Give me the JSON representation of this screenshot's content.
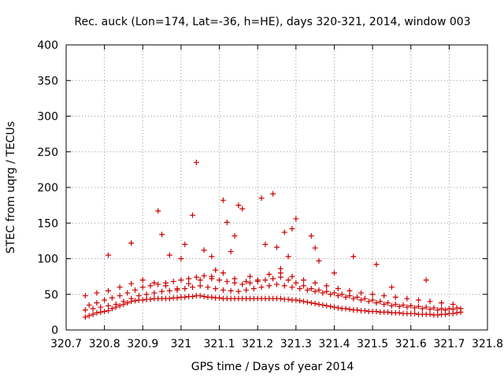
{
  "chart_data": {
    "type": "scatter",
    "title": "Rec. auck (Lon=174, Lat=-36, h=HE), days 320-321, 2014, window 003",
    "xlabel": "GPS time / Days of year 2014",
    "ylabel": "STEC from uqrg / TECUs",
    "xlim": [
      320.7,
      321.8
    ],
    "ylim": [
      0,
      400
    ],
    "xticks": [
      320.7,
      320.8,
      320.9,
      321.0,
      321.1,
      321.2,
      321.3,
      321.4,
      321.5,
      321.6,
      321.7,
      321.8
    ],
    "xtick_labels": [
      "320.7",
      "320.8",
      "320.9",
      "321",
      "321.1",
      "321.2",
      "321.3",
      "321.4",
      "321.5",
      "321.6",
      "321.7",
      "321.8"
    ],
    "yticks": [
      0,
      50,
      100,
      150,
      200,
      250,
      300,
      350,
      400
    ],
    "ytick_labels": [
      "0",
      "50",
      "100",
      "150",
      "200",
      "250",
      "300",
      "350",
      "400"
    ],
    "grid": true,
    "marker": "+",
    "color": "#cc0000",
    "series": [
      {
        "name": "STEC",
        "x": [
          320.75,
          320.76,
          320.77,
          320.78,
          320.79,
          320.8,
          320.81,
          320.82,
          320.83,
          320.84,
          320.85,
          320.86,
          320.87,
          320.88,
          320.89,
          320.9,
          320.91,
          320.92,
          320.93,
          320.94,
          320.95,
          320.96,
          320.97,
          320.98,
          320.99,
          321.0,
          321.01,
          321.02,
          321.03,
          321.04,
          321.05,
          321.06,
          321.07,
          321.08,
          321.09,
          321.1,
          321.11,
          321.12,
          321.13,
          321.14,
          321.15,
          321.16,
          321.17,
          321.18,
          321.19,
          321.2,
          321.21,
          321.22,
          321.23,
          321.24,
          321.25,
          321.26,
          321.27,
          321.28,
          321.29,
          321.3,
          321.31,
          321.32,
          321.33,
          321.34,
          321.35,
          321.36,
          321.37,
          321.38,
          321.39,
          321.4,
          321.41,
          321.42,
          321.43,
          321.44,
          321.45,
          321.46,
          321.47,
          321.48,
          321.49,
          321.5,
          321.51,
          321.52,
          321.53,
          321.54,
          321.55,
          321.56,
          321.57,
          321.58,
          321.59,
          321.6,
          321.61,
          321.62,
          321.63,
          321.64,
          321.65,
          321.66,
          321.67,
          321.68,
          321.69,
          321.7,
          321.71,
          321.72,
          321.73,
          320.75,
          320.77,
          320.79,
          320.81,
          320.83,
          320.85,
          320.87,
          320.89,
          320.91,
          320.93,
          320.95,
          320.97,
          320.99,
          321.01,
          321.03,
          321.05,
          321.07,
          321.09,
          321.11,
          321.13,
          321.15,
          321.17,
          321.19,
          321.21,
          321.23,
          321.25,
          321.27,
          321.29,
          321.31,
          321.33,
          321.35,
          321.37,
          321.39,
          321.41,
          321.43,
          321.45,
          321.47,
          321.49,
          321.51,
          321.53,
          321.55,
          321.57,
          321.59,
          321.61,
          321.63,
          321.65,
          321.67,
          321.69,
          321.71,
          321.73,
          320.76,
          320.78,
          320.8,
          320.82,
          320.84,
          320.86,
          320.88,
          320.9,
          320.92,
          320.94,
          320.96,
          320.98,
          321.0,
          321.02,
          321.04,
          321.06,
          321.08,
          321.1,
          321.12,
          321.14,
          321.16,
          321.18,
          321.2,
          321.22,
          321.24,
          321.26,
          321.28,
          321.3,
          321.32,
          321.34,
          321.36,
          321.38,
          321.4,
          321.42,
          321.44,
          321.46,
          321.48,
          321.5,
          321.52,
          321.54,
          321.56,
          321.58,
          321.6,
          321.62,
          321.64,
          321.66,
          321.68,
          321.7,
          321.72,
          320.75,
          320.78,
          320.81,
          320.84,
          320.87,
          320.9,
          320.93,
          320.96,
          320.99,
          321.02,
          321.05,
          321.08,
          321.11,
          321.14,
          321.17,
          321.2,
          321.23,
          321.26,
          321.29,
          321.32,
          321.35,
          321.38,
          321.41,
          321.44,
          321.47,
          321.5,
          321.53,
          321.56,
          321.59,
          321.62,
          321.65,
          321.68,
          321.71,
          320.81,
          320.87,
          320.94,
          320.95,
          320.97,
          321.01,
          321.03,
          321.04,
          321.06,
          321.08,
          321.11,
          321.12,
          321.13,
          321.14,
          321.15,
          321.16,
          321.21,
          321.22,
          321.24,
          321.25,
          321.27,
          321.28,
          321.29,
          321.3,
          321.34,
          321.35,
          321.4,
          321.45,
          321.51,
          321.55,
          321.64,
          321.36,
          321.26,
          321.18,
          321.09,
          321.0
        ],
        "y": [
          18,
          20,
          22,
          24,
          25,
          26,
          27,
          30,
          32,
          34,
          36,
          38,
          40,
          41,
          42,
          42,
          43,
          43,
          44,
          44,
          44,
          44,
          44,
          45,
          45,
          46,
          46,
          47,
          47,
          48,
          48,
          47,
          46,
          46,
          45,
          45,
          44,
          44,
          44,
          44,
          44,
          44,
          44,
          44,
          44,
          44,
          44,
          44,
          44,
          44,
          44,
          44,
          43,
          43,
          42,
          42,
          41,
          40,
          39,
          38,
          37,
          36,
          35,
          34,
          33,
          32,
          31,
          30,
          30,
          29,
          28,
          28,
          27,
          27,
          26,
          26,
          26,
          25,
          25,
          25,
          24,
          24,
          24,
          23,
          23,
          23,
          23,
          22,
          22,
          22,
          22,
          21,
          21,
          22,
          22,
          23,
          23,
          24,
          25,
          28,
          30,
          32,
          34,
          36,
          40,
          44,
          48,
          50,
          52,
          54,
          55,
          56,
          58,
          60,
          62,
          60,
          58,
          56,
          55,
          54,
          56,
          58,
          60,
          62,
          64,
          62,
          60,
          58,
          56,
          54,
          52,
          50,
          48,
          46,
          44,
          42,
          40,
          38,
          36,
          34,
          33,
          32,
          31,
          30,
          29,
          28,
          28,
          29,
          30,
          35,
          38,
          42,
          45,
          48,
          52,
          56,
          60,
          62,
          64,
          66,
          68,
          70,
          72,
          74,
          76,
          72,
          70,
          68,
          66,
          64,
          66,
          68,
          70,
          72,
          74,
          70,
          66,
          62,
          58,
          56,
          54,
          52,
          50,
          48,
          46,
          44,
          42,
          40,
          38,
          36,
          35,
          34,
          33,
          32,
          31,
          30,
          30,
          31,
          48,
          52,
          55,
          60,
          65,
          70,
          66,
          62,
          58,
          65,
          70,
          75,
          80,
          72,
          68,
          70,
          78,
          80,
          75,
          70,
          66,
          62,
          58,
          55,
          52,
          50,
          48,
          46,
          44,
          42,
          40,
          38,
          36,
          105,
          122,
          167,
          134,
          105,
          120,
          161,
          235,
          112,
          103,
          182,
          151,
          110,
          132,
          175,
          170,
          185,
          120,
          191,
          116,
          137,
          103,
          142,
          156,
          132,
          115,
          80,
          103,
          92,
          60,
          70,
          97,
          86,
          75,
          84,
          100
        ]
      }
    ]
  }
}
